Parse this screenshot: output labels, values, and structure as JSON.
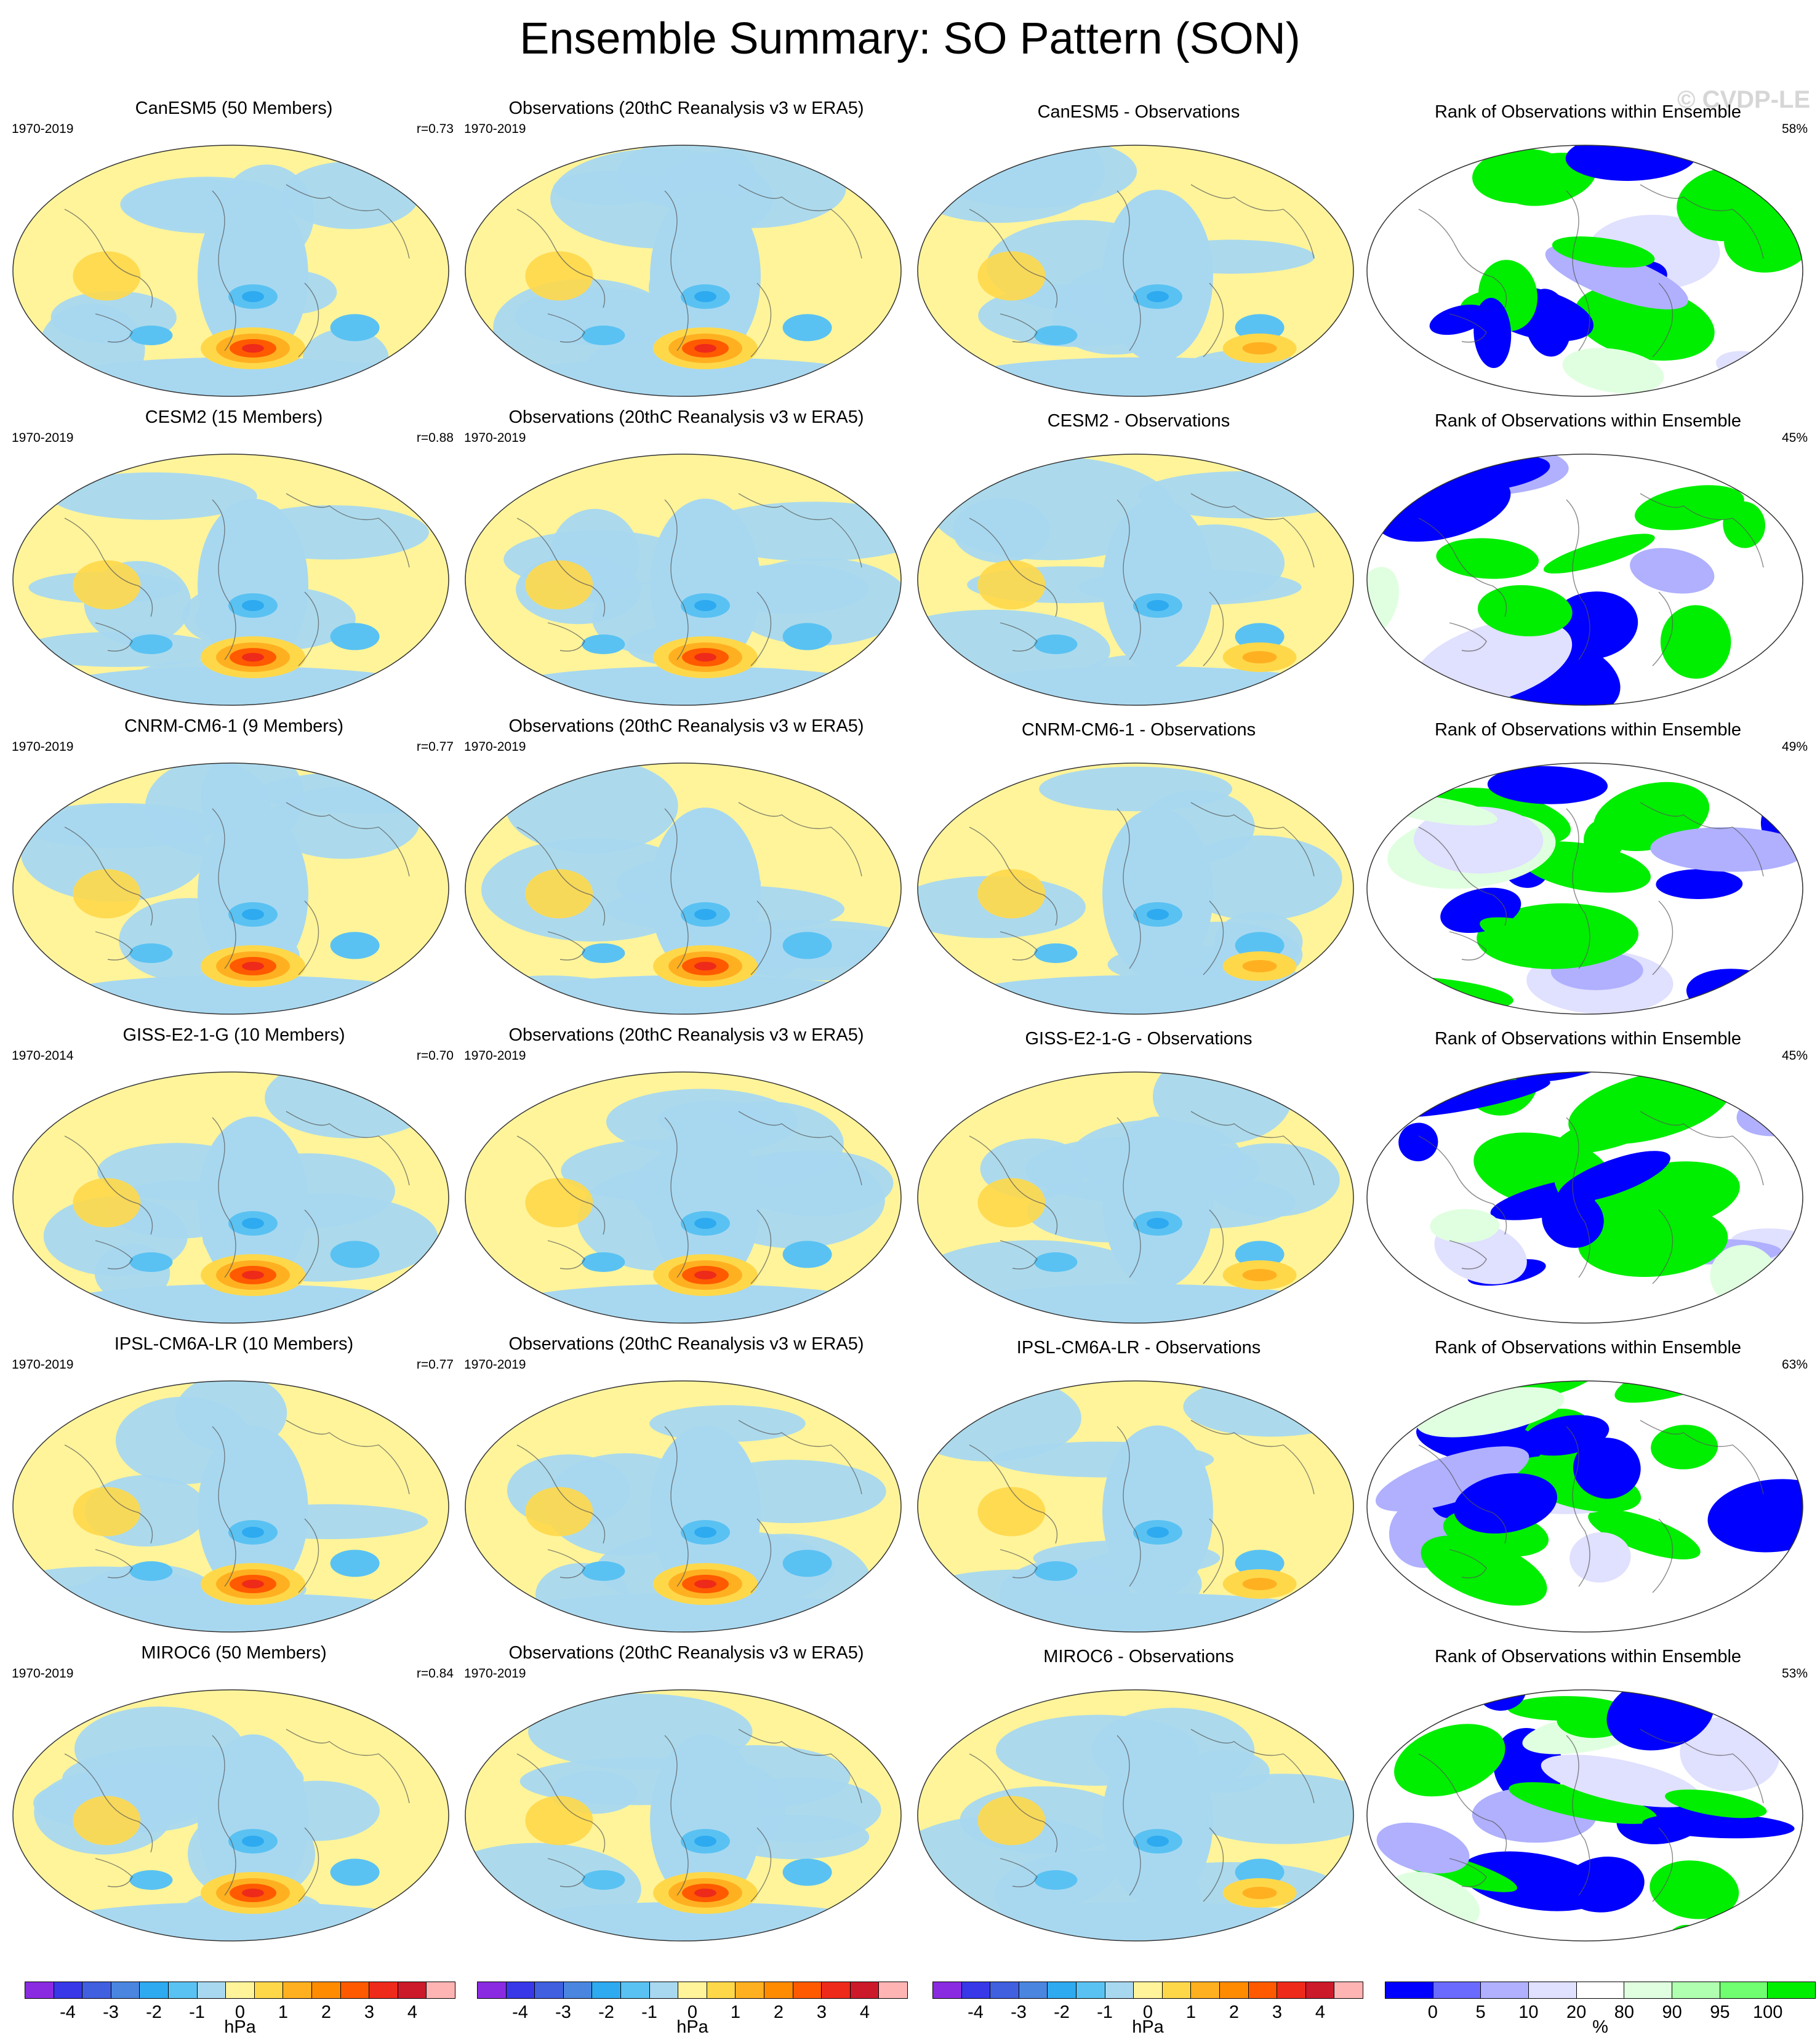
{
  "title": "Ensemble Summary: SO Pattern (SON)",
  "watermark": "© CVDP-LE",
  "rows": [
    {
      "model_title": "CanESM5 (50 Members)",
      "model_years": "1970-2019",
      "correlation": "r=0.73",
      "obs_title": "Observations (20thC Reanalysis v3 w ERA5)",
      "obs_years": "1970-2019",
      "diff_title": "CanESM5 - Observations",
      "rank_title": "Rank of Observations within Ensemble",
      "rank_pct": "58%"
    },
    {
      "model_title": "CESM2 (15 Members)",
      "model_years": "1970-2019",
      "correlation": "r=0.88",
      "obs_title": "Observations (20thC Reanalysis v3 w ERA5)",
      "obs_years": "1970-2019",
      "diff_title": "CESM2 - Observations",
      "rank_title": "Rank of Observations within Ensemble",
      "rank_pct": "45%"
    },
    {
      "model_title": "CNRM-CM6-1 (9 Members)",
      "model_years": "1970-2019",
      "correlation": "r=0.77",
      "obs_title": "Observations (20thC Reanalysis v3 w ERA5)",
      "obs_years": "1970-2019",
      "diff_title": "CNRM-CM6-1 - Observations",
      "rank_title": "Rank of Observations within Ensemble",
      "rank_pct": "49%"
    },
    {
      "model_title": "GISS-E2-1-G (10 Members)",
      "model_years": "1970-2014",
      "correlation": "r=0.70",
      "obs_title": "Observations (20thC Reanalysis v3 w ERA5)",
      "obs_years": "1970-2019",
      "diff_title": "GISS-E2-1-G - Observations",
      "rank_title": "Rank of Observations within Ensemble",
      "rank_pct": "45%"
    },
    {
      "model_title": "IPSL-CM6A-LR (10 Members)",
      "model_years": "1970-2019",
      "correlation": "r=0.77",
      "obs_title": "Observations (20thC Reanalysis v3 w ERA5)",
      "obs_years": "1970-2019",
      "diff_title": "IPSL-CM6A-LR - Observations",
      "rank_title": "Rank of Observations within Ensemble",
      "rank_pct": "63%"
    },
    {
      "model_title": "MIROC6 (50 Members)",
      "model_years": "1970-2019",
      "correlation": "r=0.84",
      "obs_title": "Observations (20thC Reanalysis v3 w ERA5)",
      "obs_years": "1970-2019",
      "diff_title": "MIROC6 - Observations",
      "rank_title": "Rank of Observations within Ensemble",
      "rank_pct": "53%"
    }
  ],
  "hpa_colorbar": {
    "unit": "hPa",
    "colors": [
      "#8a2be2",
      "#3838e8",
      "#4060e0",
      "#4a86e0",
      "#2eaaf0",
      "#5ac2f2",
      "#a8d8f0",
      "#fff49a",
      "#ffd84a",
      "#ffb020",
      "#ff8c00",
      "#ff5a00",
      "#ee2a1a",
      "#cc1a2a",
      "#ffb4b4"
    ],
    "ticks": [
      "-4",
      "-3",
      "-2",
      "-1",
      "0",
      "1",
      "2",
      "3",
      "4"
    ]
  },
  "rank_colorbar": {
    "unit": "%",
    "colors": [
      "#0000ff",
      "#6a6aff",
      "#b0b0ff",
      "#e0e0ff",
      "#ffffff",
      "#e0ffe0",
      "#b0ffb0",
      "#70ff70",
      "#00ee00"
    ],
    "ticks": [
      "0",
      "5",
      "10",
      "20",
      "80",
      "90",
      "95",
      "100"
    ]
  }
}
